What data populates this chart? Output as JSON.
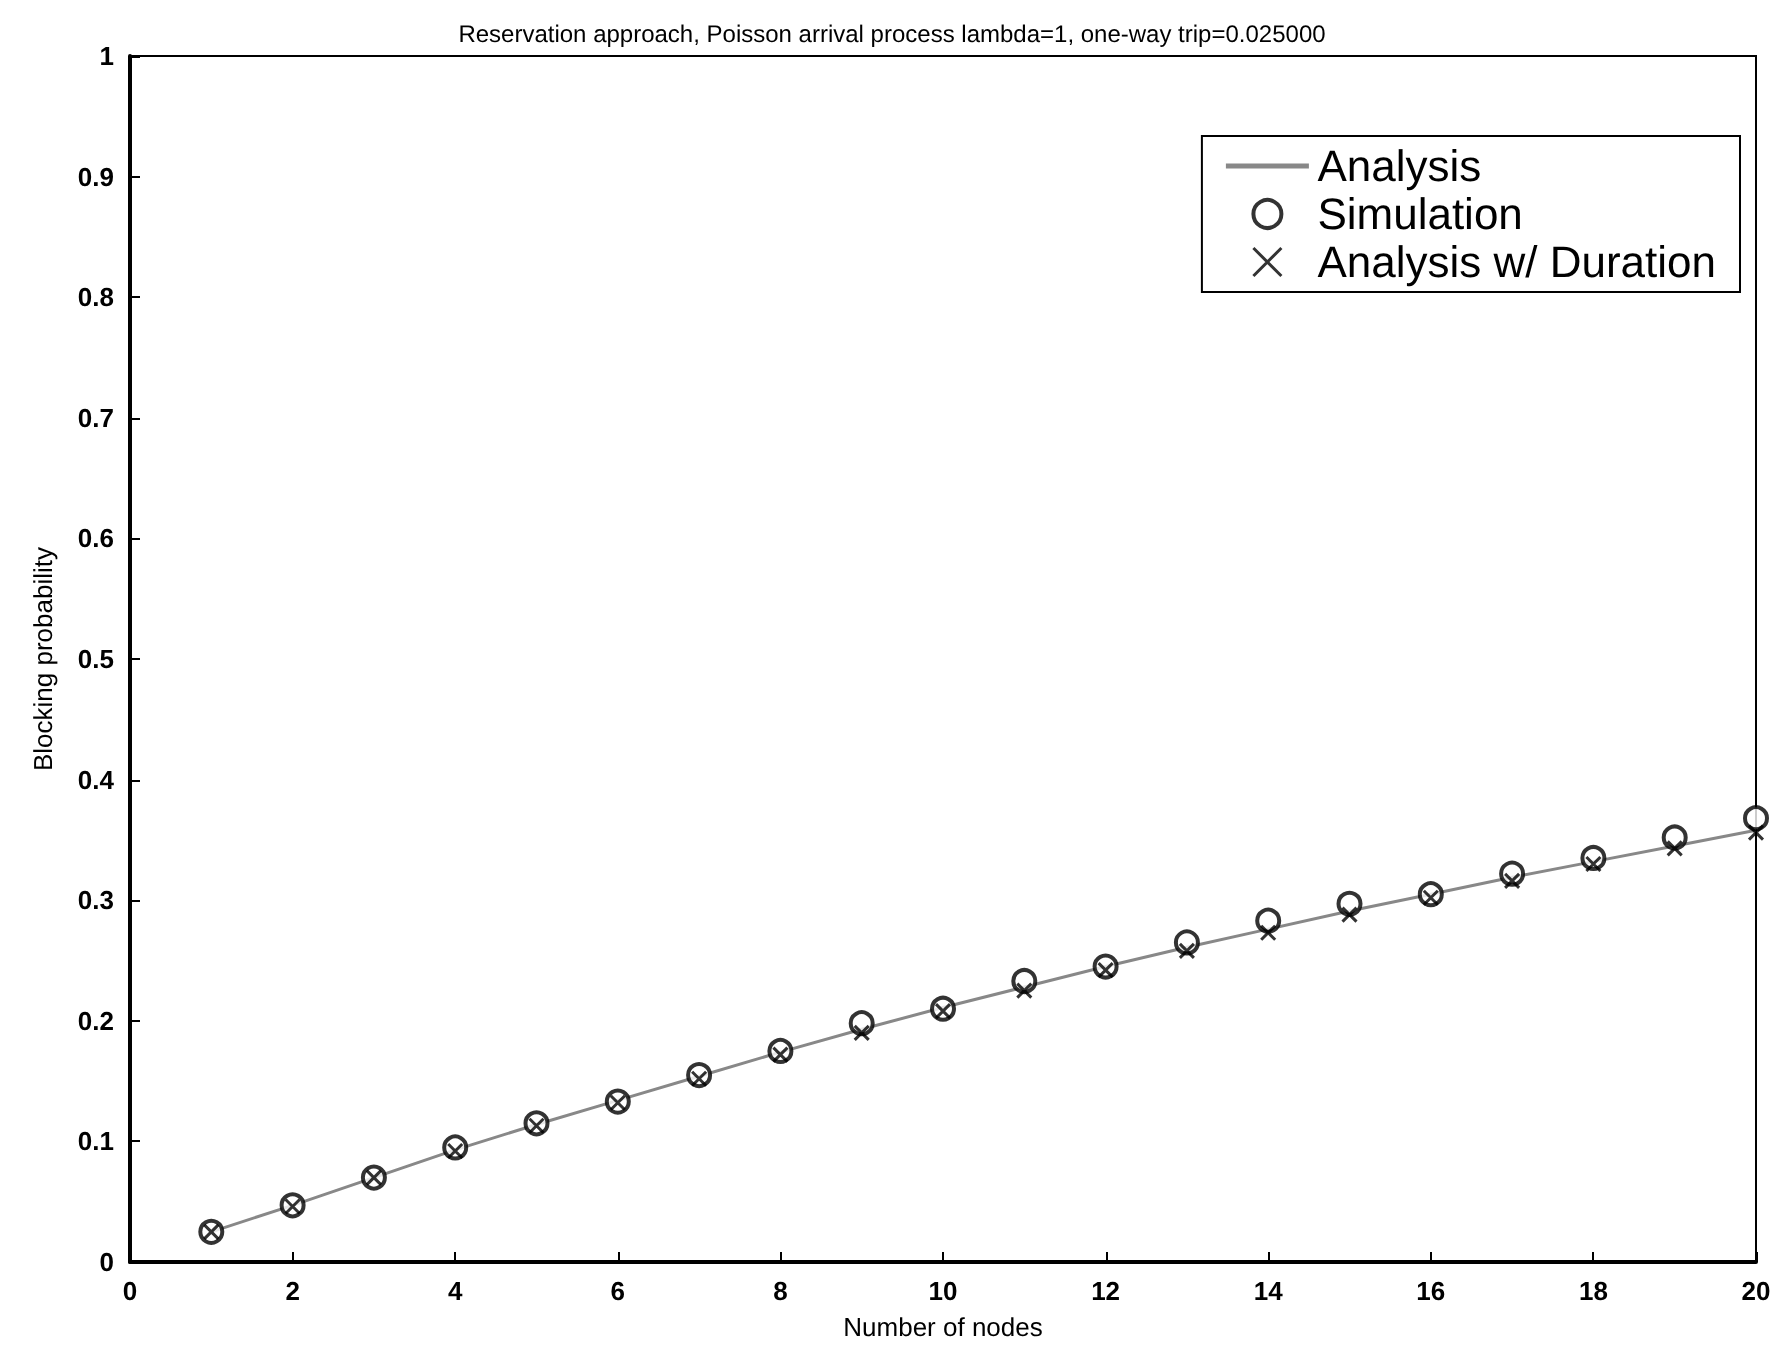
{
  "chart_data": {
    "type": "line",
    "title": "Reservation approach, Poisson arrival process lambda=1, one-way trip=0.025000",
    "xlabel": "Number of nodes",
    "ylabel": "Blocking probability",
    "x": [
      1,
      2,
      3,
      4,
      5,
      6,
      7,
      8,
      9,
      10,
      11,
      12,
      13,
      14,
      15,
      16,
      17,
      18,
      19,
      20
    ],
    "xlim": [
      0,
      20
    ],
    "xticks": [
      0,
      2,
      4,
      6,
      8,
      10,
      12,
      14,
      16,
      18,
      20
    ],
    "ylim": [
      0,
      1
    ],
    "yticks": [
      0,
      0.1,
      0.2,
      0.3,
      0.4,
      0.5,
      0.6,
      0.7,
      0.8,
      0.9,
      1
    ],
    "legend": "top right",
    "grid": false,
    "series": [
      {
        "name": "Analysis",
        "marker": "none",
        "line_style": "solid",
        "color": "#888888",
        "values": [
          0.025,
          0.047,
          0.07,
          0.093,
          0.114,
          0.134,
          0.154,
          0.174,
          0.193,
          0.211,
          0.228,
          0.245,
          0.261,
          0.276,
          0.291,
          0.305,
          0.319,
          0.332,
          0.345,
          0.358
        ]
      },
      {
        "name": "Simulation",
        "type": "scatter",
        "marker": "circle",
        "color": "#000000",
        "values": [
          0.025,
          0.047,
          0.07,
          0.095,
          0.115,
          0.133,
          0.155,
          0.175,
          0.198,
          0.21,
          0.233,
          0.245,
          0.265,
          0.283,
          0.297,
          0.305,
          0.322,
          0.335,
          0.352,
          0.368
        ]
      },
      {
        "name": "Analysis w/ Duration",
        "type": "scatter",
        "marker": "cross",
        "color": "#000000",
        "values": [
          0.025,
          0.046,
          0.07,
          0.092,
          0.113,
          0.132,
          0.152,
          0.172,
          0.19,
          0.208,
          0.225,
          0.242,
          0.258,
          0.273,
          0.288,
          0.302,
          0.316,
          0.33,
          0.343,
          0.356
        ]
      }
    ]
  }
}
